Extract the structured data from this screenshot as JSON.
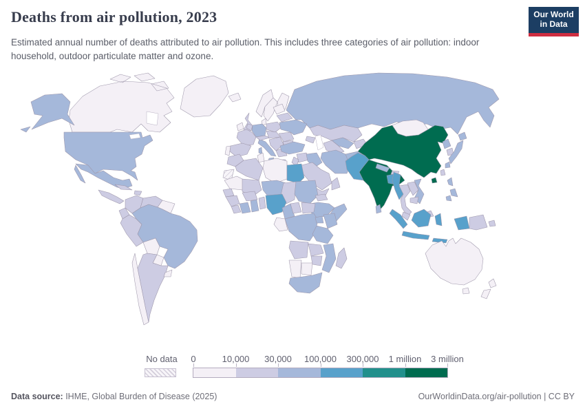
{
  "header": {
    "title": "Deaths from air pollution, 2023",
    "subtitle": "Estimated annual number of deaths attributed to air pollution. This includes three categories of air pollution: indoor household, outdoor particulate matter and ozone."
  },
  "logo": {
    "line1": "Our World",
    "line2": "in Data",
    "bg_color": "#1c3e63",
    "accent_color": "#cf2e41"
  },
  "legend": {
    "no_data_label": "No data",
    "tick_labels": [
      "0",
      "10,000",
      "30,000",
      "100,000",
      "300,000",
      "1 million",
      "3 million"
    ],
    "colors": [
      "#f4f0f6",
      "#cdcce3",
      "#a5b8da",
      "#58a1cb",
      "#22908c",
      "#006c50"
    ]
  },
  "footer": {
    "source_label": "Data source:",
    "source_text": " IHME, Global Burden of Disease (2025)",
    "right_text": "OurWorldinData.org/air-pollution | CC BY"
  },
  "chart_data": {
    "type": "choropleth_map",
    "title": "Deaths from air pollution, 2023",
    "unit": "deaths per year",
    "legend_scale": "log-binned",
    "bins": [
      {
        "label": "0 – 10,000",
        "color": "#f4f0f6"
      },
      {
        "label": "10,000 – 30,000",
        "color": "#cdcce3"
      },
      {
        "label": "30,000 – 100,000",
        "color": "#a5b8da"
      },
      {
        "label": "100,000 – 300,000",
        "color": "#58a1cb"
      },
      {
        "label": "300,000 – 1 million",
        "color": "#22908c"
      },
      {
        "label": "1 million – 3 million",
        "color": "#006c50"
      }
    ],
    "no_data": {
      "label": "No data",
      "style": "hatched"
    },
    "countries": [
      {
        "name": "Russia",
        "id": "russia",
        "bin": 2
      },
      {
        "name": "Canada",
        "id": "canada",
        "bin": 0
      },
      {
        "name": "Greenland",
        "id": "greenland",
        "bin": 0
      },
      {
        "name": "United States",
        "id": "united-states",
        "bin": 2
      },
      {
        "name": "Mexico",
        "id": "mexico",
        "bin": 2
      },
      {
        "name": "Central America",
        "id": "central-america",
        "bin": 1
      },
      {
        "name": "Cuba",
        "id": "cuba",
        "bin": 1
      },
      {
        "name": "Hispaniola",
        "id": "hispaniola",
        "bin": 1
      },
      {
        "name": "Colombia",
        "id": "colombia",
        "bin": 1
      },
      {
        "name": "Venezuela",
        "id": "venezuela",
        "bin": 1
      },
      {
        "name": "Guyanas",
        "id": "guyanas",
        "bin": 0
      },
      {
        "name": "Ecuador",
        "id": "ecuador",
        "bin": 1
      },
      {
        "name": "Peru",
        "id": "peru",
        "bin": 1
      },
      {
        "name": "Brazil",
        "id": "brazil",
        "bin": 2
      },
      {
        "name": "Bolivia",
        "id": "bolivia",
        "bin": 0
      },
      {
        "name": "Paraguay",
        "id": "paraguay",
        "bin": 0
      },
      {
        "name": "Chile",
        "id": "chile",
        "bin": 0
      },
      {
        "name": "Argentina",
        "id": "argentina",
        "bin": 1
      },
      {
        "name": "Uruguay",
        "id": "uruguay",
        "bin": 0
      },
      {
        "name": "Iceland",
        "id": "iceland",
        "bin": 0
      },
      {
        "name": "Ireland",
        "id": "ireland",
        "bin": 0
      },
      {
        "name": "United Kingdom",
        "id": "united-kingdom",
        "bin": 1
      },
      {
        "name": "Norway",
        "id": "norway",
        "bin": 0
      },
      {
        "name": "Sweden",
        "id": "sweden",
        "bin": 0
      },
      {
        "name": "Finland",
        "id": "finland",
        "bin": 0
      },
      {
        "name": "Denmark",
        "id": "denmark",
        "bin": 0
      },
      {
        "name": "Germany",
        "id": "germany",
        "bin": 2
      },
      {
        "name": "Benelux",
        "id": "benelux",
        "bin": 1
      },
      {
        "name": "France",
        "id": "france",
        "bin": 1
      },
      {
        "name": "Spain",
        "id": "spain",
        "bin": 1
      },
      {
        "name": "Portugal",
        "id": "portugal",
        "bin": 0
      },
      {
        "name": "Italy",
        "id": "italy",
        "bin": 2
      },
      {
        "name": "Switzerland-Austria",
        "id": "switzerland-austria",
        "bin": 1
      },
      {
        "name": "Poland",
        "id": "poland",
        "bin": 1
      },
      {
        "name": "Czechia-Hungary",
        "id": "czechia-hungary",
        "bin": 1
      },
      {
        "name": "Balkans",
        "id": "balkans",
        "bin": 1
      },
      {
        "name": "Greece",
        "id": "greece",
        "bin": 1
      },
      {
        "name": "Romania",
        "id": "romania",
        "bin": 1
      },
      {
        "name": "Bulgaria",
        "id": "bulgaria",
        "bin": 1
      },
      {
        "name": "Ukraine",
        "id": "ukraine",
        "bin": 2
      },
      {
        "name": "Belarus",
        "id": "belarus",
        "bin": 1
      },
      {
        "name": "Baltic states",
        "id": "baltics",
        "bin": 0
      },
      {
        "name": "Kazakhstan",
        "id": "kazakhstan",
        "bin": 1
      },
      {
        "name": "Uzbekistan",
        "id": "uzbekistan",
        "bin": 2
      },
      {
        "name": "Turkmenistan",
        "id": "turkmenistan",
        "bin": 1
      },
      {
        "name": "Kyrgyzstan-Tajikistan",
        "id": "kyrgyzstan-tajikistan",
        "bin": 1
      },
      {
        "name": "Caucasus",
        "id": "caucasus",
        "bin": 1
      },
      {
        "name": "Turkey",
        "id": "turkey",
        "bin": 2
      },
      {
        "name": "Syria-Levant",
        "id": "syria-levant",
        "bin": 1
      },
      {
        "name": "Israel-Jordan",
        "id": "israel-jordan",
        "bin": 1
      },
      {
        "name": "Iraq",
        "id": "iraq",
        "bin": 2
      },
      {
        "name": "Iran",
        "id": "iran",
        "bin": 2
      },
      {
        "name": "Afghanistan",
        "id": "afghanistan",
        "bin": 2
      },
      {
        "name": "Saudi Arabia",
        "id": "saudi-arabia",
        "bin": 1
      },
      {
        "name": "Yemen",
        "id": "yemen",
        "bin": 1
      },
      {
        "name": "Oman",
        "id": "oman",
        "bin": 1
      },
      {
        "name": "China",
        "id": "china",
        "bin": 5
      },
      {
        "name": "Mongolia",
        "id": "mongolia",
        "bin": 0
      },
      {
        "name": "India",
        "id": "india",
        "bin": 5
      },
      {
        "name": "Pakistan",
        "id": "pakistan",
        "bin": 3
      },
      {
        "name": "Nepal",
        "id": "nepal",
        "bin": 2
      },
      {
        "name": "Bhutan",
        "id": "bhutan",
        "bin": 1
      },
      {
        "name": "Bangladesh",
        "id": "bangladesh",
        "bin": 3
      },
      {
        "name": "Sri Lanka",
        "id": "sri-lanka",
        "bin": 2
      },
      {
        "name": "Myanmar",
        "id": "myanmar",
        "bin": 3
      },
      {
        "name": "Thailand",
        "id": "thailand",
        "bin": 1
      },
      {
        "name": "Laos",
        "id": "laos",
        "bin": 1
      },
      {
        "name": "Vietnam",
        "id": "vietnam",
        "bin": 2
      },
      {
        "name": "Cambodia",
        "id": "cambodia",
        "bin": 1
      },
      {
        "name": "Malaysia",
        "id": "malaysia",
        "bin": 1
      },
      {
        "name": "North Korea",
        "id": "north-korea",
        "bin": 2
      },
      {
        "name": "South Korea",
        "id": "south-korea",
        "bin": 1
      },
      {
        "name": "Japan",
        "id": "japan",
        "bin": 2
      },
      {
        "name": "Taiwan",
        "id": "taiwan",
        "bin": 1
      },
      {
        "name": "Philippines",
        "id": "philippines",
        "bin": 2
      },
      {
        "name": "Indonesia",
        "id": "indonesia",
        "bin": 3
      },
      {
        "name": "Papua New Guinea",
        "id": "papua-new-guinea",
        "bin": 1
      },
      {
        "name": "Australia",
        "id": "australia",
        "bin": 0
      },
      {
        "name": "New Zealand",
        "id": "new-zealand",
        "bin": 0
      },
      {
        "name": "Morocco",
        "id": "morocco",
        "bin": 1
      },
      {
        "name": "Algeria",
        "id": "algeria",
        "bin": 1
      },
      {
        "name": "Tunisia",
        "id": "tunisia",
        "bin": 0
      },
      {
        "name": "Libya",
        "id": "libya",
        "bin": 0
      },
      {
        "name": "Egypt",
        "id": "egypt",
        "bin": 3
      },
      {
        "name": "Western Sahara",
        "id": "western-sahara",
        "bin": "no-data"
      },
      {
        "name": "Mauritania",
        "id": "mauritania",
        "bin": 0
      },
      {
        "name": "Mali",
        "id": "mali",
        "bin": 1
      },
      {
        "name": "Niger",
        "id": "niger",
        "bin": 2
      },
      {
        "name": "Chad",
        "id": "chad",
        "bin": 1
      },
      {
        "name": "Sudan",
        "id": "sudan",
        "bin": 2
      },
      {
        "name": "Eritrea",
        "id": "eritrea",
        "bin": 1
      },
      {
        "name": "Ethiopia",
        "id": "ethiopia",
        "bin": 2
      },
      {
        "name": "Somalia",
        "id": "somalia",
        "bin": 2
      },
      {
        "name": "Senegal",
        "id": "senegal",
        "bin": 1
      },
      {
        "name": "Guinea",
        "id": "guinea-group",
        "bin": 1
      },
      {
        "name": "Sierra Leone-Liberia",
        "id": "sierra-leone-liberia",
        "bin": 1
      },
      {
        "name": "Ivory Coast",
        "id": "ivory-coast",
        "bin": 2
      },
      {
        "name": "Burkina Faso",
        "id": "burkina-faso",
        "bin": 1
      },
      {
        "name": "Ghana",
        "id": "ghana",
        "bin": 2
      },
      {
        "name": "Togo-Benin",
        "id": "togo-benin",
        "bin": 1
      },
      {
        "name": "Nigeria",
        "id": "nigeria",
        "bin": 3
      },
      {
        "name": "Cameroon",
        "id": "cameroon",
        "bin": 2
      },
      {
        "name": "Central African Republic",
        "id": "central-african-republic",
        "bin": 1
      },
      {
        "name": "South Sudan",
        "id": "south-sudan",
        "bin": 1
      },
      {
        "name": "DR Congo",
        "id": "drc",
        "bin": 2
      },
      {
        "name": "Congo-Gabon",
        "id": "congo-gabon",
        "bin": 0
      },
      {
        "name": "Uganda",
        "id": "uganda",
        "bin": 2
      },
      {
        "name": "Kenya",
        "id": "kenya",
        "bin": 2
      },
      {
        "name": "Tanzania",
        "id": "tanzania",
        "bin": 2
      },
      {
        "name": "Angola",
        "id": "angola",
        "bin": 1
      },
      {
        "name": "Zambia",
        "id": "zambia",
        "bin": 1
      },
      {
        "name": "Mozambique",
        "id": "mozambique",
        "bin": 2
      },
      {
        "name": "Zimbabwe",
        "id": "zimbabwe",
        "bin": 1
      },
      {
        "name": "Namibia",
        "id": "namibia",
        "bin": 0
      },
      {
        "name": "Botswana",
        "id": "botswana",
        "bin": 0
      },
      {
        "name": "South Africa",
        "id": "south-africa",
        "bin": 2
      },
      {
        "name": "Madagascar",
        "id": "madagascar",
        "bin": 1
      }
    ]
  }
}
